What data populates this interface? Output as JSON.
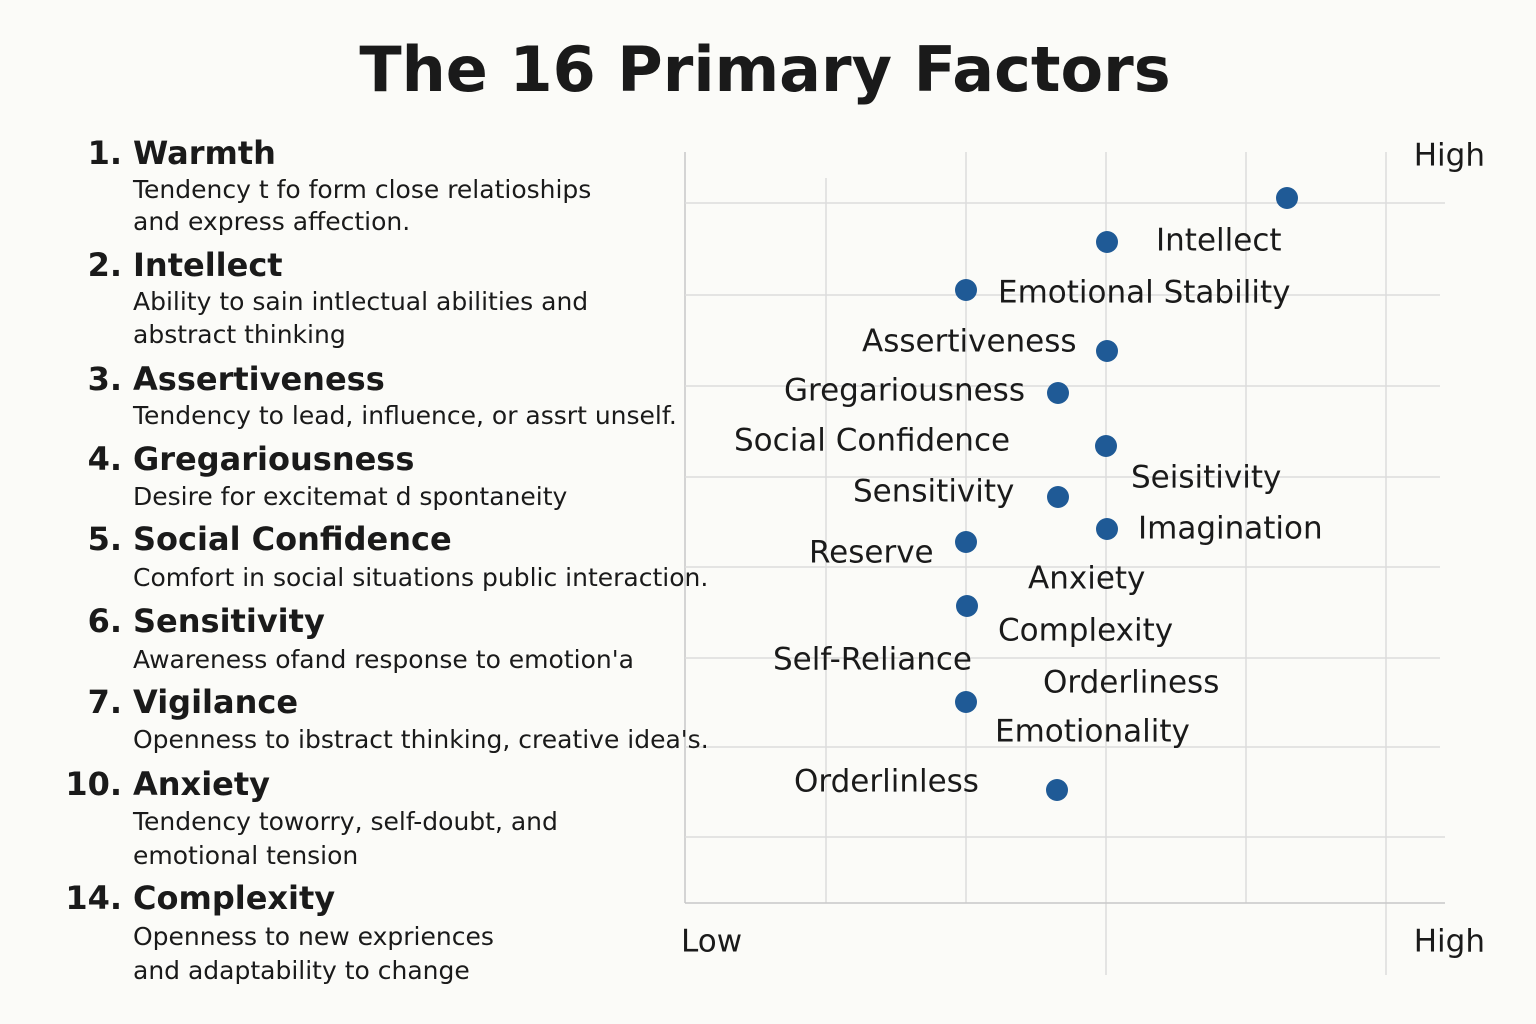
{
  "title": "The 16 Primary Factors",
  "factors": [
    {
      "number": "1.",
      "name": "Warmth",
      "description": [
        "Tendency t fo form close relatioships",
        "and express affection."
      ]
    },
    {
      "number": "2.",
      "name": "Intellect",
      "description": [
        "Ability to sain intlectual abilities and",
        "abstract thinking"
      ]
    },
    {
      "number": "3.",
      "name": "Assertiveness",
      "description": [
        "Tendency to lead, influence, or assrt unself."
      ]
    },
    {
      "number": "4.",
      "name": "Gregariousness",
      "description": [
        "Desire for excitemat d spontaneity"
      ]
    },
    {
      "number": "5.",
      "name": "Social Confidence",
      "description": [
        "Comfort in social situations public interaction."
      ]
    },
    {
      "number": "6.",
      "name": "Sensitivity",
      "description": [
        "Awareness ofand response to emotion'a"
      ]
    },
    {
      "number": "7.",
      "name": "Vigilance",
      "description": [
        "Openness to ibstract thinking, creative idea's."
      ]
    },
    {
      "number": "10.",
      "name": "Anxiety",
      "description": [
        "Tendency toworry, self-doubt, and",
        "emotional tension"
      ]
    },
    {
      "number": "14.",
      "name": "Complexity",
      "description": [
        "Openness to new expriences",
        "and adaptability to change"
      ]
    }
  ],
  "chart": {
    "axis_labels": {
      "y_high": "High",
      "x_low": "Low",
      "x_high": "High"
    },
    "labels": [
      "Intellect",
      "Emotional Stability",
      "Assertiveness",
      "Gregariousness",
      "Social Confidence",
      "Seisitivity",
      "Sensitivity",
      "Imagination",
      "Reserve",
      "Anxiety",
      "Complexity",
      "Self-Reliance",
      "Orderliness",
      "Emotionality",
      "Orderlinless"
    ]
  }
}
